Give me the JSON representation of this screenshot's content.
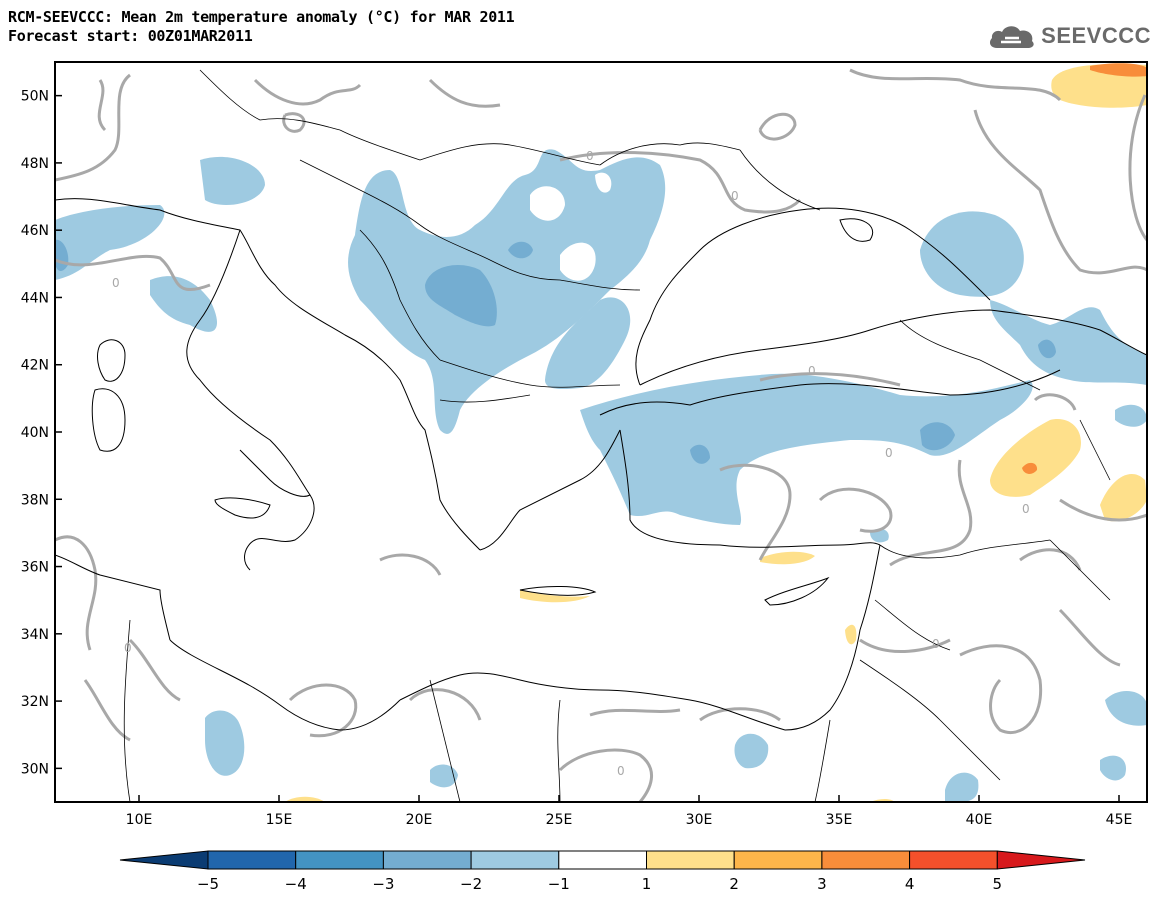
{
  "header": {
    "title_line1": "RCM-SEEVCCC: Mean 2m temperature anomaly (°C) for MAR 2011",
    "title_line2": "Forecast start: 00Z01MAR2011"
  },
  "logo": {
    "text": "SEEVCCC",
    "icon": "cloud-icon"
  },
  "map": {
    "lon_range": [
      7,
      46
    ],
    "lat_range": [
      29,
      51
    ],
    "lon_ticks": [
      "10E",
      "15E",
      "20E",
      "25E",
      "30E",
      "35E",
      "40E",
      "45E"
    ],
    "lat_ticks": [
      "50N",
      "48N",
      "46N",
      "44N",
      "42N",
      "40N",
      "38N",
      "36N",
      "34N",
      "32N",
      "30N"
    ],
    "contour_label": "0"
  },
  "colorbar": {
    "labels": [
      "−5",
      "−4",
      "−3",
      "−2",
      "−1",
      "1",
      "2",
      "3",
      "4",
      "5"
    ],
    "colors": [
      "#0b3c73",
      "#2166ac",
      "#4393c3",
      "#74add1",
      "#9ecae1",
      "#ffffff",
      "#fee08b",
      "#fdb64a",
      "#f88d3a",
      "#f4502b",
      "#d7191c"
    ]
  }
}
